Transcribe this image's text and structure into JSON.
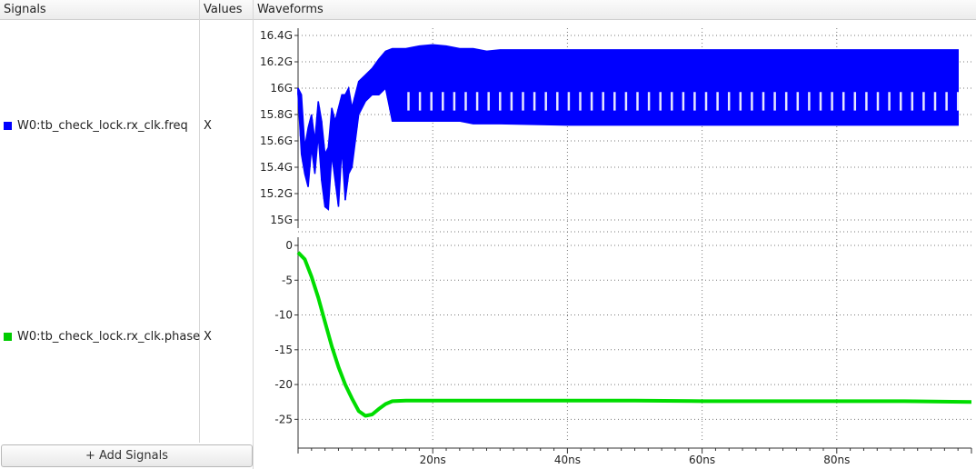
{
  "headers": {
    "signals": "Signals",
    "values": "Values",
    "waveforms": "Waveforms"
  },
  "signals": [
    {
      "name": "W0:tb_check_lock.rx_clk.freq",
      "value": "X",
      "color": "#0000ff"
    },
    {
      "name": "W0:tb_check_lock.rx_clk.phase",
      "value": "X",
      "color": "#00cc00"
    }
  ],
  "add_signals_label": "+ Add Signals",
  "colors": {
    "freq": "#0000ff",
    "phase": "#00dd00",
    "grid": "#7a7a7a"
  },
  "chart_data": [
    {
      "type": "line",
      "series": [
        {
          "name": "W0:tb_check_lock.rx_clk.freq",
          "x": [
            0,
            0.5,
            1,
            1.5,
            2,
            2.5,
            3,
            3.5,
            4,
            4.5,
            5,
            5.5,
            6,
            6.5,
            7,
            7.5,
            8,
            9,
            10,
            11,
            12,
            13,
            14,
            16,
            18,
            20,
            22,
            24,
            26,
            28,
            30,
            40,
            50,
            60,
            70,
            80,
            90,
            98
          ],
          "y_low": [
            15.95,
            15.5,
            15.35,
            15.25,
            15.55,
            15.35,
            15.65,
            15.3,
            15.1,
            15.08,
            15.5,
            15.3,
            15.1,
            15.55,
            15.15,
            15.35,
            15.4,
            15.8,
            15.9,
            15.95,
            15.95,
            16.0,
            15.75,
            15.75,
            15.75,
            15.75,
            15.75,
            15.75,
            15.73,
            15.73,
            15.73,
            15.72,
            15.72,
            15.72,
            15.72,
            15.72,
            15.72,
            15.72
          ],
          "y_high": [
            16.0,
            15.95,
            15.55,
            15.7,
            15.8,
            15.6,
            15.9,
            15.75,
            15.5,
            15.55,
            15.85,
            15.75,
            15.85,
            15.95,
            15.95,
            16.0,
            15.85,
            16.05,
            16.1,
            16.15,
            16.22,
            16.28,
            16.3,
            16.3,
            16.32,
            16.33,
            16.32,
            16.3,
            16.3,
            16.28,
            16.29,
            16.29,
            16.29,
            16.29,
            16.29,
            16.29,
            16.29,
            16.29
          ]
        }
      ],
      "yticks": [
        "15G",
        "15.2G",
        "15.4G",
        "15.6G",
        "15.8G",
        "16G",
        "16.2G",
        "16.4G"
      ],
      "ylim": [
        15.0,
        16.4
      ],
      "xlim": [
        0,
        100
      ]
    },
    {
      "type": "line",
      "series": [
        {
          "name": "W0:tb_check_lock.rx_clk.phase",
          "x": [
            0,
            1,
            2,
            3,
            4,
            5,
            6,
            7,
            8,
            9,
            10,
            11,
            12,
            13,
            14,
            16,
            20,
            30,
            40,
            50,
            60,
            70,
            80,
            90,
            100
          ],
          "y": [
            -1,
            -2,
            -4.5,
            -7.5,
            -11,
            -14.5,
            -17.5,
            -20,
            -22,
            -23.8,
            -24.5,
            -24.3,
            -23.5,
            -22.8,
            -22.4,
            -22.3,
            -22.3,
            -22.3,
            -22.3,
            -22.3,
            -22.4,
            -22.4,
            -22.4,
            -22.4,
            -22.5
          ]
        }
      ],
      "yticks": [
        "0",
        "-5",
        "-10",
        "-15",
        "-20",
        "-25"
      ],
      "ylim": [
        -26,
        0
      ],
      "xlim": [
        0,
        100
      ]
    }
  ],
  "xticks": [
    "20ns",
    "40ns",
    "60ns",
    "80ns"
  ]
}
